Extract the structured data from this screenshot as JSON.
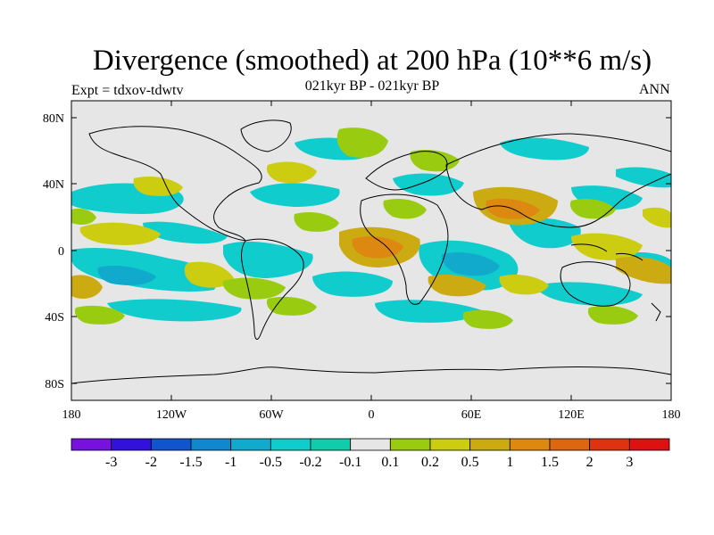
{
  "header": {
    "title": "Divergence (smoothed) at 200 hPa (10**6 m/s)",
    "subtitle": "021kyr BP - 021kyr BP",
    "experiment": "Expt = tdxov-tdwtv",
    "season": "ANN"
  },
  "map": {
    "lat_ticks": [
      "80N",
      "40N",
      "0",
      "40S",
      "80S"
    ],
    "lon_ticks": [
      "180",
      "120W",
      "60W",
      "0",
      "60E",
      "120E",
      "180"
    ],
    "land_color": "#e6e6e6"
  },
  "colorbar": {
    "colors": [
      "#7711dd",
      "#3311dd",
      "#1155cc",
      "#1188cc",
      "#11aacc",
      "#11cccc",
      "#11ccaa",
      "#e6e6e6",
      "#99cc11",
      "#cccc11",
      "#ccaa11",
      "#dd8811",
      "#dd6611",
      "#dd3311",
      "#dd1111"
    ],
    "labels": [
      "-3",
      "-2",
      "-1.5",
      "-1",
      "-0.5",
      "-0.2",
      "-0.1",
      "0.1",
      "0.2",
      "0.5",
      "1",
      "1.5",
      "2",
      "3"
    ]
  }
}
